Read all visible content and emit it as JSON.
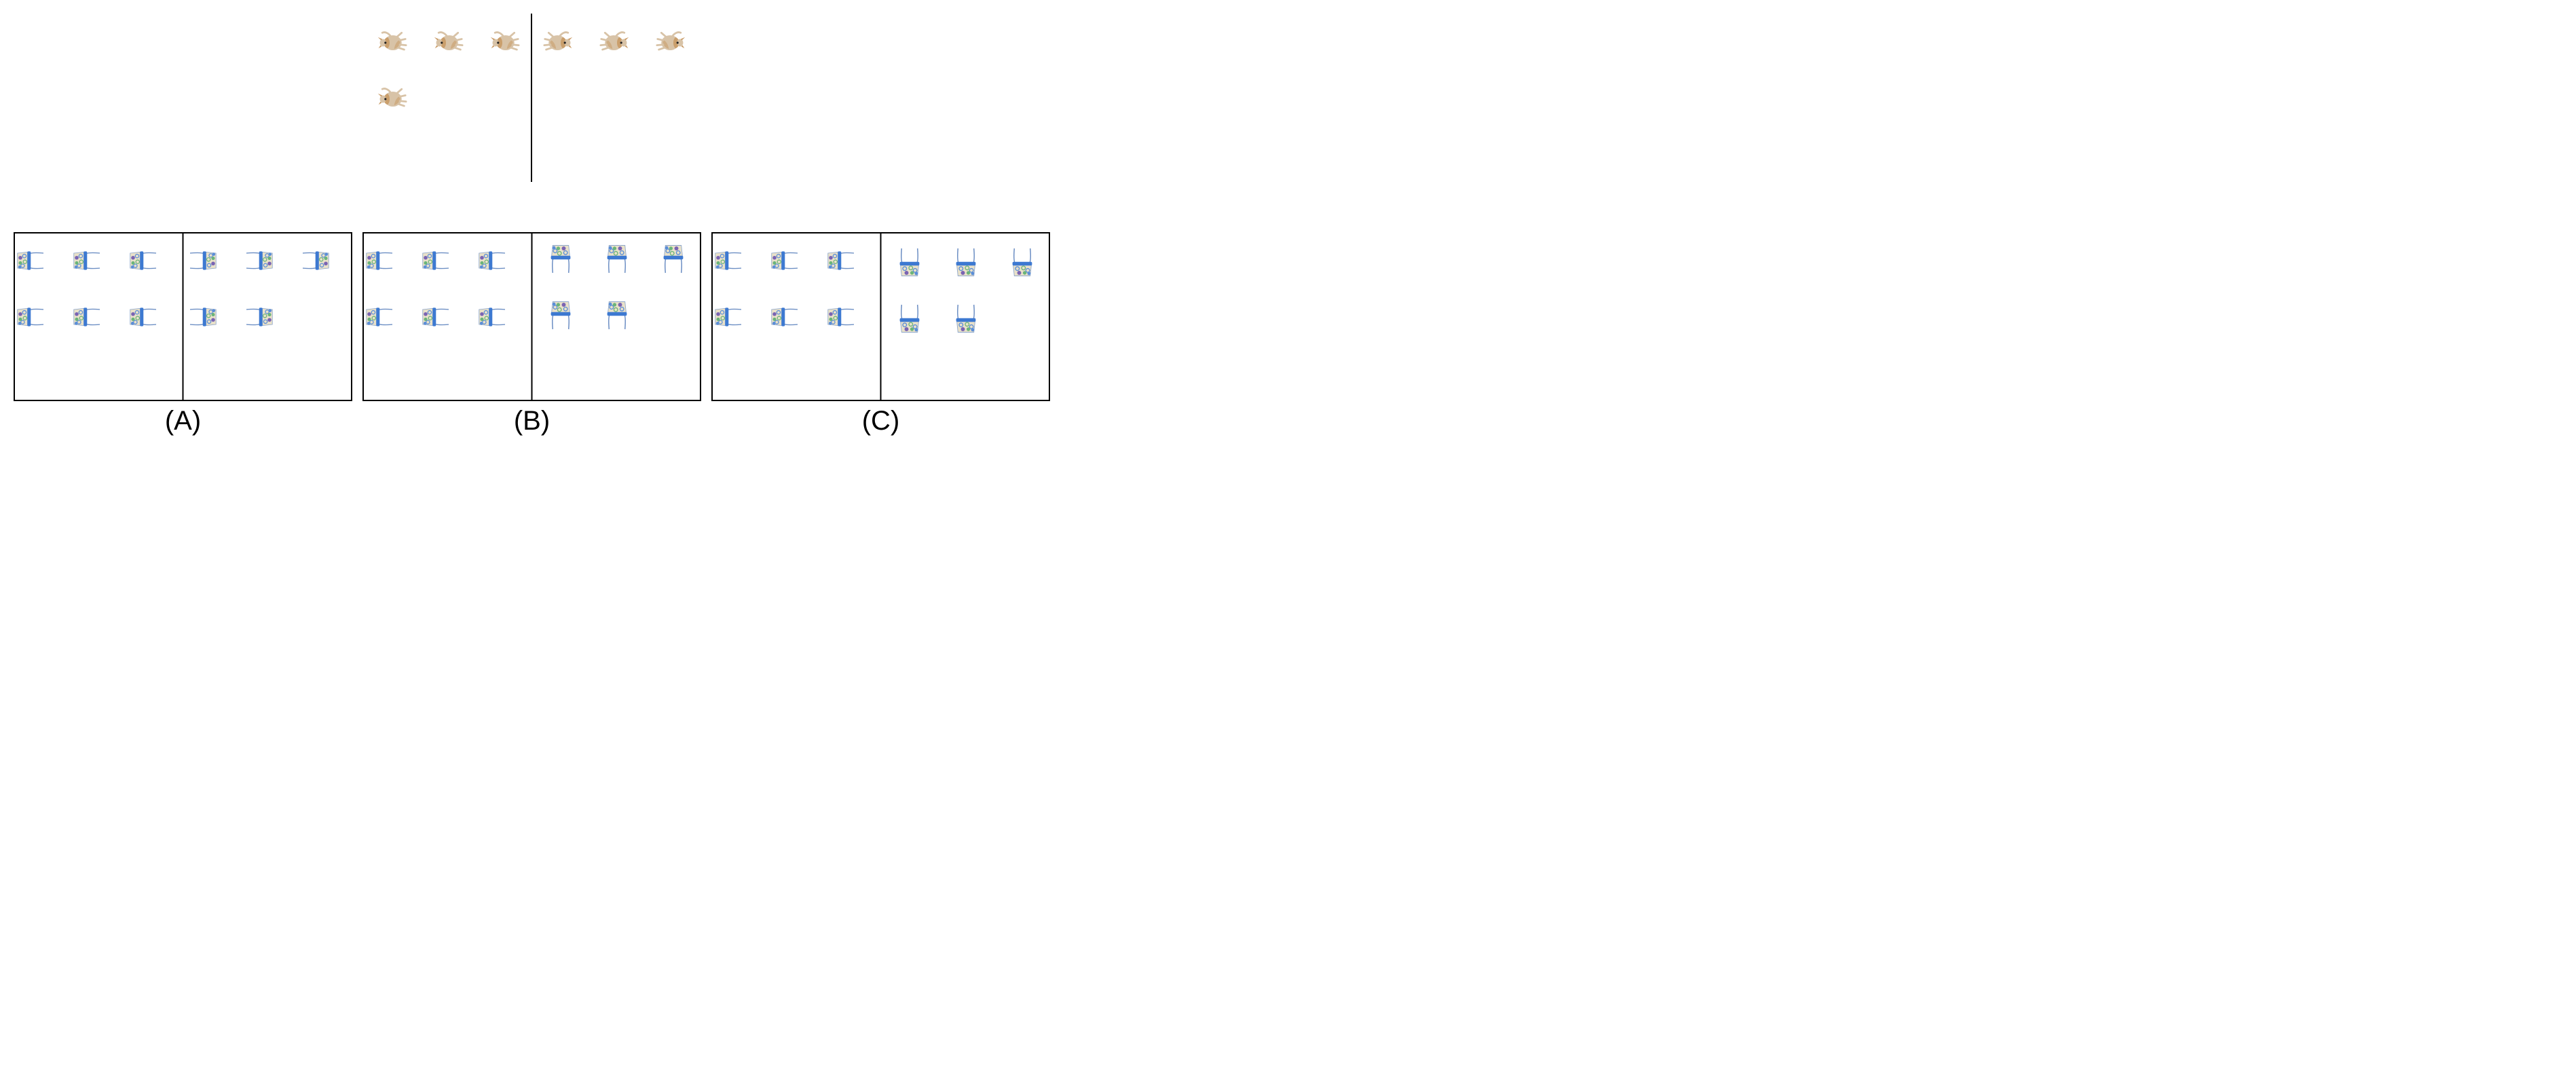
{
  "reference": {
    "left_items": 4,
    "right_items": 3,
    "item_icon": "dog-icon",
    "left_orientation": "dog-rotated-left",
    "right_orientation": "dog-rotated-right"
  },
  "options": [
    {
      "label": "(A)",
      "left_items": 6,
      "right_items": 5,
      "item_icon": "basket-icon",
      "left_orientation": "basket-rotated-right",
      "right_orientation": "basket-rotated-left"
    },
    {
      "label": "(B)",
      "left_items": 6,
      "right_items": 5,
      "item_icon": "basket-icon",
      "left_orientation": "basket-rotated-right",
      "right_orientation": "basket-upside-down"
    },
    {
      "label": "(C)",
      "left_items": 6,
      "right_items": 5,
      "item_icon": "basket-icon",
      "left_orientation": "basket-rotated-right",
      "right_orientation": "basket-upright"
    }
  ],
  "colors": {
    "line": "#000000",
    "dog_body": "#d8c3a7",
    "dog_patch": "#c99b66",
    "dog_dark": "#222222",
    "basket_body": "#e9e1c9",
    "basket_band": "#3d79d1",
    "basket_rim": "#6d8fc4",
    "basket_pattern_blue": "#5b8ed8",
    "basket_pattern_green": "#6bb57a",
    "basket_pattern_purple": "#7a64b3"
  }
}
